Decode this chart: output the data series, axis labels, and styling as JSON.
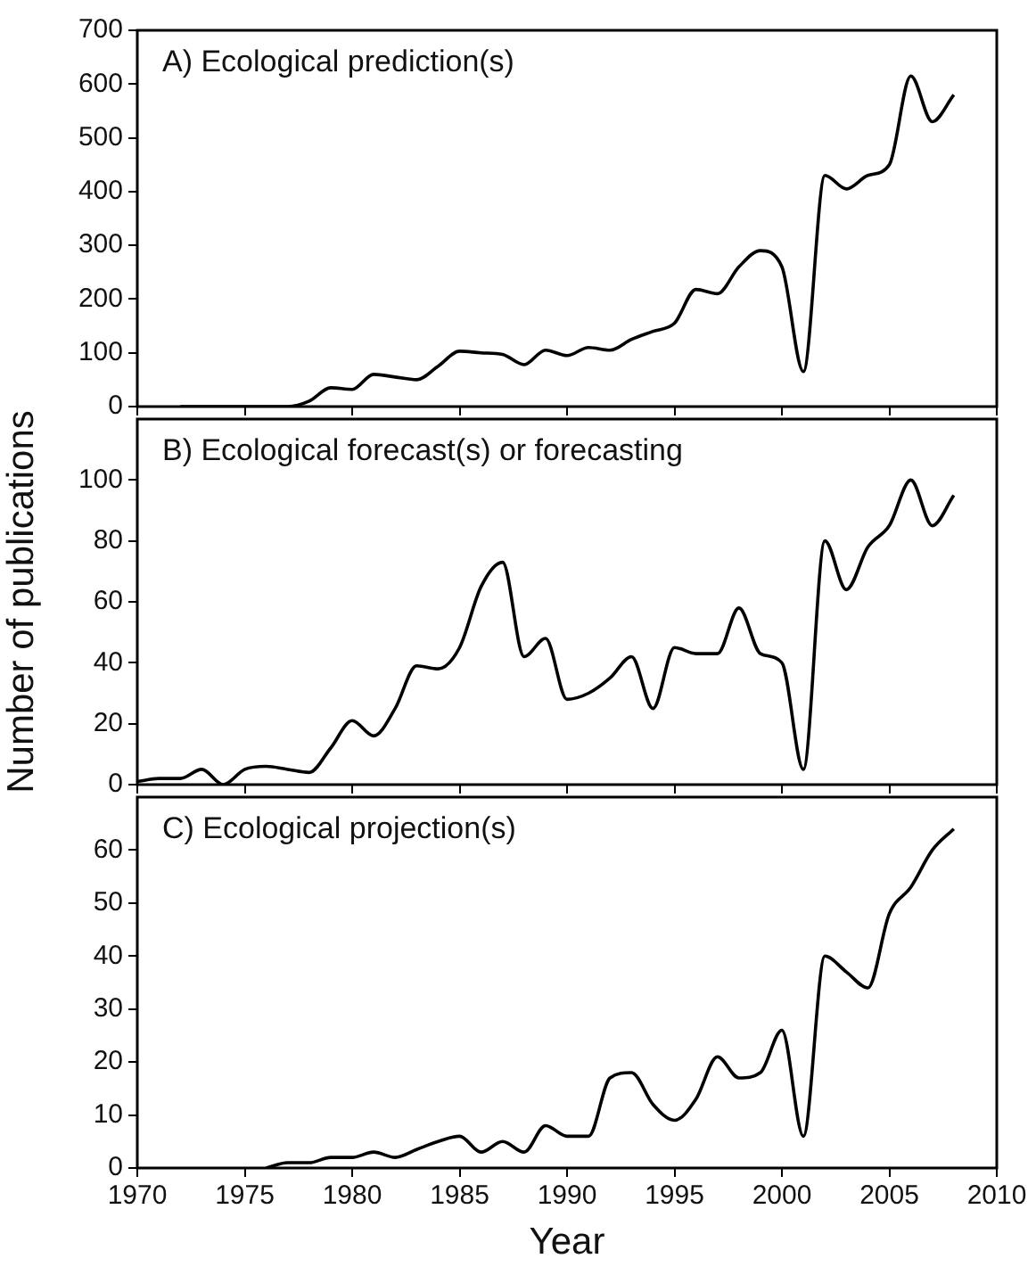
{
  "chart_data": [
    {
      "type": "line",
      "title": "A) Ecological prediction(s)",
      "tick_labels": "y",
      "grid": false,
      "legend": false,
      "marker": "none",
      "line_style": "solid",
      "xlim": [
        1970,
        2010
      ],
      "xticks": [
        1970,
        1975,
        1980,
        1985,
        1990,
        1995,
        2000,
        2005,
        2010
      ],
      "ylim": [
        0,
        700
      ],
      "yticks": [
        0,
        100,
        200,
        300,
        400,
        500,
        600,
        700
      ],
      "series": [
        {
          "color": "#000000",
          "x": [
            1972,
            1973,
            1974,
            1975,
            1976,
            1977,
            1978,
            1979,
            1980,
            1981,
            1982,
            1983,
            1984,
            1985,
            1986,
            1987,
            1988,
            1989,
            1990,
            1991,
            1992,
            1993,
            1994,
            1995,
            1996,
            1997,
            1998,
            1999,
            2000,
            2001,
            2002,
            2003,
            2004,
            2005,
            2006,
            2007,
            2008
          ],
          "values": [
            0,
            0,
            0,
            0,
            0,
            0,
            10,
            35,
            32,
            60,
            55,
            50,
            75,
            103,
            100,
            97,
            78,
            105,
            95,
            110,
            105,
            125,
            140,
            155,
            218,
            210,
            260,
            290,
            260,
            65,
            430,
            405,
            430,
            450,
            615,
            530,
            580
          ]
        }
      ]
    },
    {
      "type": "line",
      "title": "B) Ecological forecast(s) or forecasting",
      "ylabel": "Number of publications",
      "tick_labels": "y",
      "grid": false,
      "legend": false,
      "marker": "none",
      "line_style": "solid",
      "xlim": [
        1970,
        2010
      ],
      "xticks": [
        1970,
        1975,
        1980,
        1985,
        1990,
        1995,
        2000,
        2005,
        2010
      ],
      "ylim": [
        0,
        120
      ],
      "yticks": [
        0,
        20,
        40,
        60,
        80,
        100
      ],
      "series": [
        {
          "color": "#000000",
          "x": [
            1970,
            1971,
            1972,
            1973,
            1974,
            1975,
            1976,
            1977,
            1978,
            1979,
            1980,
            1981,
            1982,
            1983,
            1984,
            1985,
            1986,
            1987,
            1988,
            1989,
            1990,
            1991,
            1992,
            1993,
            1994,
            1995,
            1996,
            1997,
            1998,
            1999,
            2000,
            2001,
            2002,
            2003,
            2004,
            2005,
            2006,
            2007,
            2008
          ],
          "values": [
            1,
            2,
            2,
            5,
            0,
            5,
            6,
            5,
            4,
            12,
            21,
            16,
            25,
            39,
            38,
            45,
            65,
            73,
            42,
            48,
            28,
            30,
            35,
            42,
            25,
            45,
            43,
            43,
            58,
            43,
            40,
            5,
            80,
            64,
            78,
            85,
            100,
            85,
            95
          ]
        }
      ]
    },
    {
      "type": "line",
      "title": "C) Ecological projection(s)",
      "xlabel": "Year",
      "grid": false,
      "legend": false,
      "marker": "none",
      "line_style": "solid",
      "xlim": [
        1970,
        2010
      ],
      "xticks": [
        1970,
        1975,
        1980,
        1985,
        1990,
        1995,
        2000,
        2005,
        2010
      ],
      "ylim": [
        0,
        70
      ],
      "yticks": [
        0,
        10,
        20,
        30,
        40,
        50,
        60
      ],
      "series": [
        {
          "color": "#000000",
          "x": [
            1976,
            1977,
            1978,
            1979,
            1980,
            1981,
            1982,
            1983,
            1984,
            1985,
            1986,
            1987,
            1988,
            1989,
            1990,
            1991,
            1992,
            1993,
            1994,
            1995,
            1996,
            1997,
            1998,
            1999,
            2000,
            2001,
            2002,
            2003,
            2004,
            2005,
            2006,
            2007,
            2008
          ],
          "values": [
            0,
            1,
            1,
            2,
            2,
            3,
            2,
            3.5,
            5,
            6,
            3,
            5,
            3,
            8,
            6,
            6,
            17,
            18,
            12,
            9,
            13,
            21,
            17,
            18,
            26,
            6,
            40,
            37,
            34,
            48,
            53,
            60,
            64
          ]
        }
      ]
    }
  ]
}
